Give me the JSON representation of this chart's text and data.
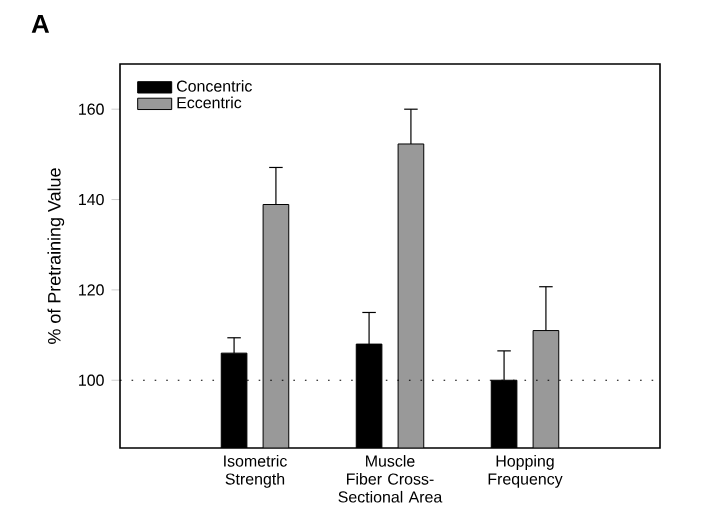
{
  "chart_data": {
    "type": "bar",
    "ylabel": "% of Pretraining Value",
    "categories": [
      "Isometric Strength",
      "Muscle Fiber Cross-Sectional Area",
      "Hopping Frequency"
    ],
    "series": [
      {
        "name": "Concentric",
        "color": "#000000",
        "values": [
          106,
          108,
          100
        ],
        "errors": [
          [
            106,
            109.4
          ],
          [
            108,
            115
          ],
          [
            100,
            106.5
          ]
        ]
      },
      {
        "name": "Eccentric",
        "color": "#999999",
        "values": [
          138.9,
          152.3,
          111
        ],
        "errors": [
          [
            138.9,
            147.1
          ],
          [
            152.3,
            160
          ],
          [
            111,
            120.7
          ]
        ]
      }
    ],
    "ylim": [
      85,
      170
    ],
    "yticks": [
      100,
      120,
      140,
      160
    ],
    "ref_lines": [
      {
        "axis": "y",
        "value": 100,
        "line_style": "dotted",
        "color": "#000000"
      }
    ],
    "legend": "top left",
    "grid": false,
    "annotations": [
      "A"
    ]
  }
}
